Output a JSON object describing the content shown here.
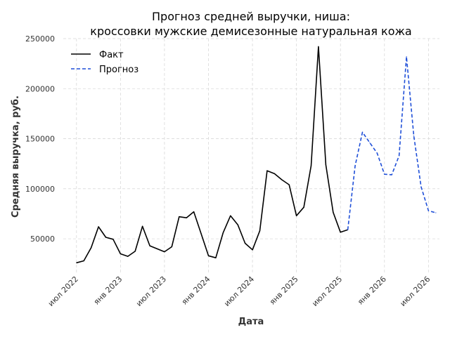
{
  "chart_data": {
    "type": "line",
    "title": [
      "Прогноз средней выручки, ниша:",
      "кроссовки мужские демисезонные натуральная кожа"
    ],
    "xlabel": "Дата",
    "ylabel": "Средняя выручка, руб.",
    "ylim": [
      15000,
      250000
    ],
    "xlim": [
      "2022-05",
      "2026-08"
    ],
    "y_ticks": [
      50000,
      100000,
      150000,
      200000,
      250000
    ],
    "x_ticks": [
      {
        "date": "2022-07",
        "label": "июл 2022"
      },
      {
        "date": "2023-01",
        "label": "янв 2023"
      },
      {
        "date": "2023-07",
        "label": "июл 2023"
      },
      {
        "date": "2024-01",
        "label": "янв 2024"
      },
      {
        "date": "2024-07",
        "label": "июл 2024"
      },
      {
        "date": "2025-01",
        "label": "янв 2025"
      },
      {
        "date": "2025-07",
        "label": "июл 2025"
      },
      {
        "date": "2026-01",
        "label": "янв 2026"
      },
      {
        "date": "2026-07",
        "label": "июл 2026"
      }
    ],
    "grid": true,
    "legend_position": "top-left",
    "series": [
      {
        "name": "Факт",
        "style": "solid",
        "color": "#000000",
        "x": [
          "2022-07",
          "2022-08",
          "2022-09",
          "2022-10",
          "2022-11",
          "2022-12",
          "2023-01",
          "2023-02",
          "2023-03",
          "2023-04",
          "2023-05",
          "2023-06",
          "2023-07",
          "2023-08",
          "2023-09",
          "2023-10",
          "2023-11",
          "2023-12",
          "2024-01",
          "2024-02",
          "2024-03",
          "2024-04",
          "2024-05",
          "2024-06",
          "2024-07",
          "2024-08",
          "2024-09",
          "2024-10",
          "2024-11",
          "2024-12",
          "2025-01",
          "2025-02",
          "2025-03",
          "2025-04",
          "2025-05",
          "2025-06",
          "2025-07",
          "2025-08"
        ],
        "y": [
          26000,
          28000,
          41000,
          62000,
          51500,
          49500,
          35000,
          32500,
          37500,
          62500,
          43000,
          40000,
          37000,
          42000,
          72000,
          71000,
          77000,
          55000,
          33000,
          31000,
          56000,
          73000,
          64000,
          45500,
          39000,
          58000,
          118000,
          115000,
          109000,
          104000,
          73000,
          81500,
          123000,
          242000,
          124000,
          76500,
          56500,
          59000
        ]
      },
      {
        "name": "Прогноз",
        "style": "dashed",
        "color": "#1f4fd8",
        "x": [
          "2025-08",
          "2025-09",
          "2025-10",
          "2025-11",
          "2025-12",
          "2026-01",
          "2026-02",
          "2026-03",
          "2026-04",
          "2026-05",
          "2026-06",
          "2026-07",
          "2026-08"
        ],
        "y": [
          59000,
          123000,
          156500,
          146000,
          135500,
          114500,
          114000,
          133000,
          232000,
          153000,
          102000,
          78000,
          76000
        ]
      }
    ]
  }
}
